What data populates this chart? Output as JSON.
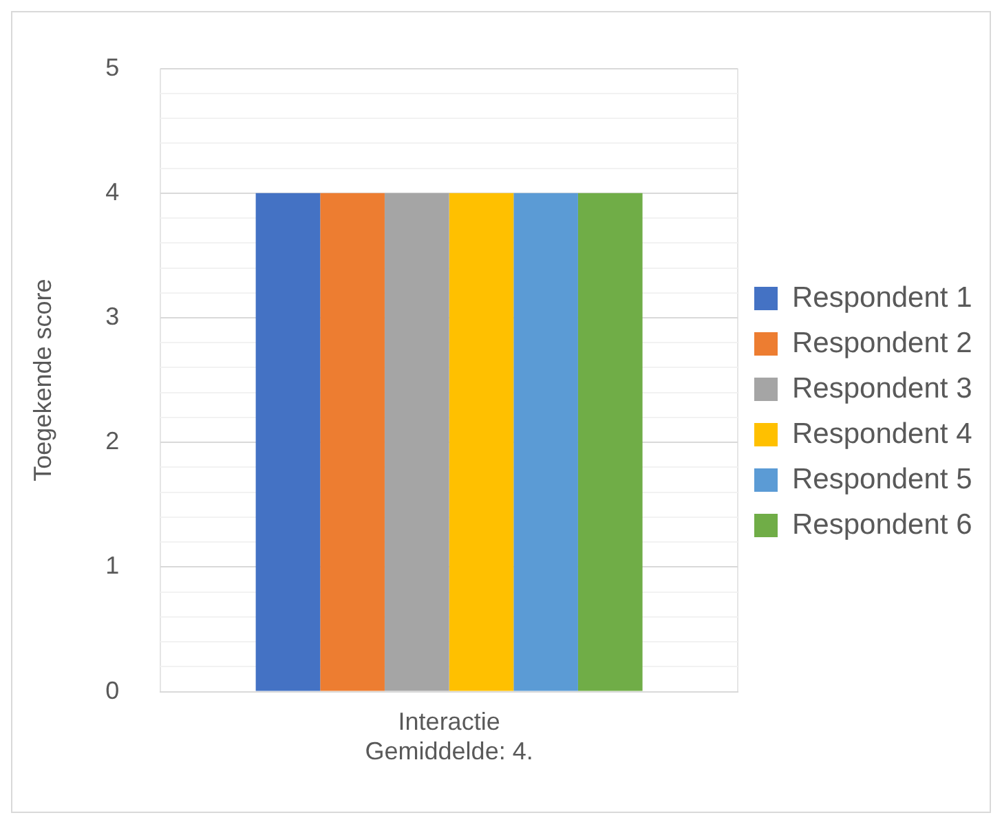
{
  "chart_data": {
    "type": "bar",
    "ylabel": "Toegekende score",
    "categories": [
      "Interactie\nGemiddelde: 4."
    ],
    "series": [
      {
        "name": "Respondent 1",
        "color": "#4472c4",
        "values": [
          4
        ]
      },
      {
        "name": "Respondent 2",
        "color": "#ed7d31",
        "values": [
          4
        ]
      },
      {
        "name": "Respondent 3",
        "color": "#a5a5a5",
        "values": [
          4
        ]
      },
      {
        "name": "Respondent 4",
        "color": "#ffc000",
        "values": [
          4
        ]
      },
      {
        "name": "Respondent 5",
        "color": "#5b9bd5",
        "values": [
          4
        ]
      },
      {
        "name": "Respondent 6",
        "color": "#70ad47",
        "values": [
          4
        ]
      }
    ],
    "ylim": [
      0,
      5
    ],
    "yticks": [
      0,
      {
        "value": 0.2,
        "label": null
      },
      {
        "value": 0.4,
        "label": null
      },
      {
        "value": 0.6,
        "label": null
      },
      {
        "value": 0.8,
        "label": null
      },
      1,
      {
        "value": 1.2,
        "label": null
      },
      {
        "value": 1.4,
        "label": null
      },
      {
        "value": 1.6,
        "label": null
      },
      {
        "value": 1.8,
        "label": null
      },
      2,
      {
        "value": 2.2,
        "label": null
      },
      {
        "value": 2.4,
        "label": null
      },
      {
        "value": 2.6,
        "label": null
      },
      {
        "value": 2.8,
        "label": null
      },
      3,
      {
        "value": 3.2,
        "label": null
      },
      {
        "value": 3.4,
        "label": null
      },
      {
        "value": 3.6,
        "label": null
      },
      {
        "value": 3.8,
        "label": null
      },
      4,
      {
        "value": 4.2,
        "label": null
      },
      {
        "value": 4.4,
        "label": null
      },
      {
        "value": 4.6,
        "label": null
      },
      {
        "value": 4.8,
        "label": null
      },
      5
    ],
    "grid": true,
    "legend": "right"
  }
}
